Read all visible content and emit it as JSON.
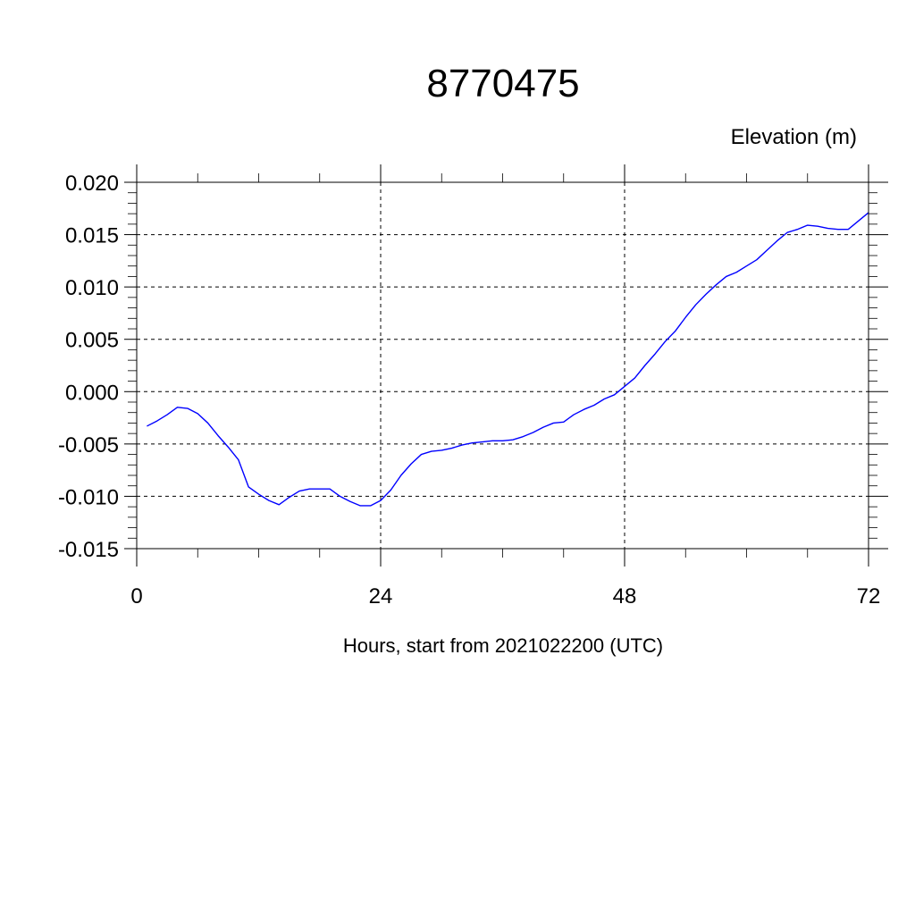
{
  "chart_data": {
    "type": "line",
    "title": "8770475",
    "ylabel": "Elevation (m)",
    "xlabel": "Hours, start from 2021022200 (UTC)",
    "xlim": [
      0,
      72
    ],
    "ylim": [
      -0.015,
      0.02
    ],
    "x_ticks": [
      0,
      24,
      48,
      72
    ],
    "x_tick_labels": [
      "0",
      "24",
      "48",
      "72"
    ],
    "y_ticks": [
      -0.015,
      -0.01,
      -0.005,
      0.0,
      0.005,
      0.01,
      0.015,
      0.02
    ],
    "y_tick_labels": [
      "-0.015",
      "-0.010",
      "-0.005",
      "0.000",
      "0.005",
      "0.010",
      "0.015",
      "0.020"
    ],
    "grid": true,
    "series": [
      {
        "color": "#0000ff",
        "x": [
          1,
          2,
          3,
          4,
          5,
          6,
          7,
          8,
          9,
          10,
          11,
          12,
          13,
          14,
          15,
          16,
          17,
          18,
          19,
          20,
          21,
          22,
          23,
          24,
          25,
          26,
          27,
          28,
          29,
          30,
          31,
          32,
          33,
          34,
          35,
          36,
          37,
          38,
          39,
          40,
          41,
          42,
          43,
          44,
          45,
          46,
          47,
          48,
          49,
          50,
          51,
          52,
          53,
          54,
          55,
          56,
          57,
          58,
          59,
          60,
          61,
          62,
          63,
          64,
          65,
          66,
          67,
          68,
          69,
          70,
          71,
          72
        ],
        "values": [
          -0.0033,
          -0.0028,
          -0.0022,
          -0.0015,
          -0.0016,
          -0.0021,
          -0.003,
          -0.0042,
          -0.0053,
          -0.0065,
          -0.0091,
          -0.0098,
          -0.0104,
          -0.0108,
          -0.0101,
          -0.0095,
          -0.0093,
          -0.0093,
          -0.0093,
          -0.01,
          -0.0105,
          -0.0109,
          -0.0109,
          -0.0104,
          -0.0094,
          -0.008,
          -0.0069,
          -0.006,
          -0.0057,
          -0.0056,
          -0.0054,
          -0.0051,
          -0.0049,
          -0.0048,
          -0.0047,
          -0.0047,
          -0.0046,
          -0.0043,
          -0.0039,
          -0.0034,
          -0.003,
          -0.0029,
          -0.0022,
          -0.0017,
          -0.0013,
          -0.0007,
          -0.0003,
          0.0005,
          0.0013,
          0.0025,
          0.0036,
          0.0048,
          0.0058,
          0.0071,
          0.0083,
          0.0093,
          0.0102,
          0.011,
          0.0114,
          0.012,
          0.0126,
          0.0135,
          0.0144,
          0.0152,
          0.0155,
          0.0159,
          0.0158,
          0.0156,
          0.0155,
          0.0155,
          0.0163,
          0.0171
        ]
      }
    ]
  }
}
